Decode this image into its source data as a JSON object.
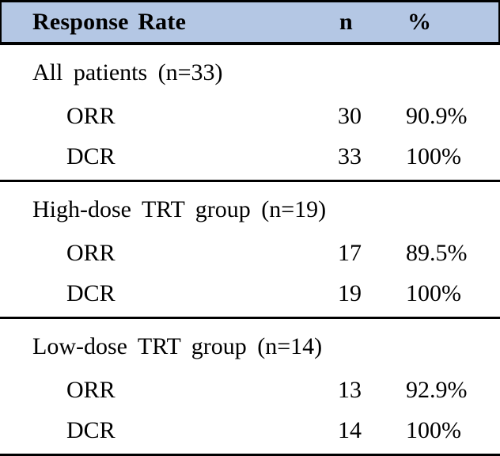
{
  "colors": {
    "header_bg": "#b4c7e4",
    "border_color": "#000000",
    "text_color": "#000000"
  },
  "table": {
    "header": {
      "response_rate": "Response Rate",
      "n": "n",
      "pct": "%"
    },
    "sections": [
      {
        "group_label": "All patients (n=33)",
        "rows": [
          {
            "label": "ORR",
            "n": "30",
            "pct": "90.9%"
          },
          {
            "label": "DCR",
            "n": "33",
            "pct": "100%"
          }
        ]
      },
      {
        "group_label": "High-dose TRT group (n=19)",
        "rows": [
          {
            "label": "ORR",
            "n": "17",
            "pct": "89.5%"
          },
          {
            "label": "DCR",
            "n": "19",
            "pct": "100%"
          }
        ]
      },
      {
        "group_label": "Low-dose TRT group (n=14)",
        "rows": [
          {
            "label": "ORR",
            "n": "13",
            "pct": "92.9%"
          },
          {
            "label": "DCR",
            "n": "14",
            "pct": "100%"
          }
        ]
      }
    ]
  },
  "chart_data": {
    "type": "table",
    "title": "Response Rate",
    "columns": [
      "Response Rate",
      "n",
      "%"
    ],
    "rows": [
      [
        "All patients (n=33)",
        "",
        ""
      ],
      [
        "ORR",
        "30",
        "90.9%"
      ],
      [
        "DCR",
        "33",
        "100%"
      ],
      [
        "High-dose TRT group (n=19)",
        "",
        ""
      ],
      [
        "ORR",
        "17",
        "89.5%"
      ],
      [
        "DCR",
        "19",
        "100%"
      ],
      [
        "Low-dose TRT group (n=14)",
        "",
        ""
      ],
      [
        "ORR",
        "13",
        "92.9%"
      ],
      [
        "DCR",
        "14",
        "100%"
      ]
    ]
  }
}
